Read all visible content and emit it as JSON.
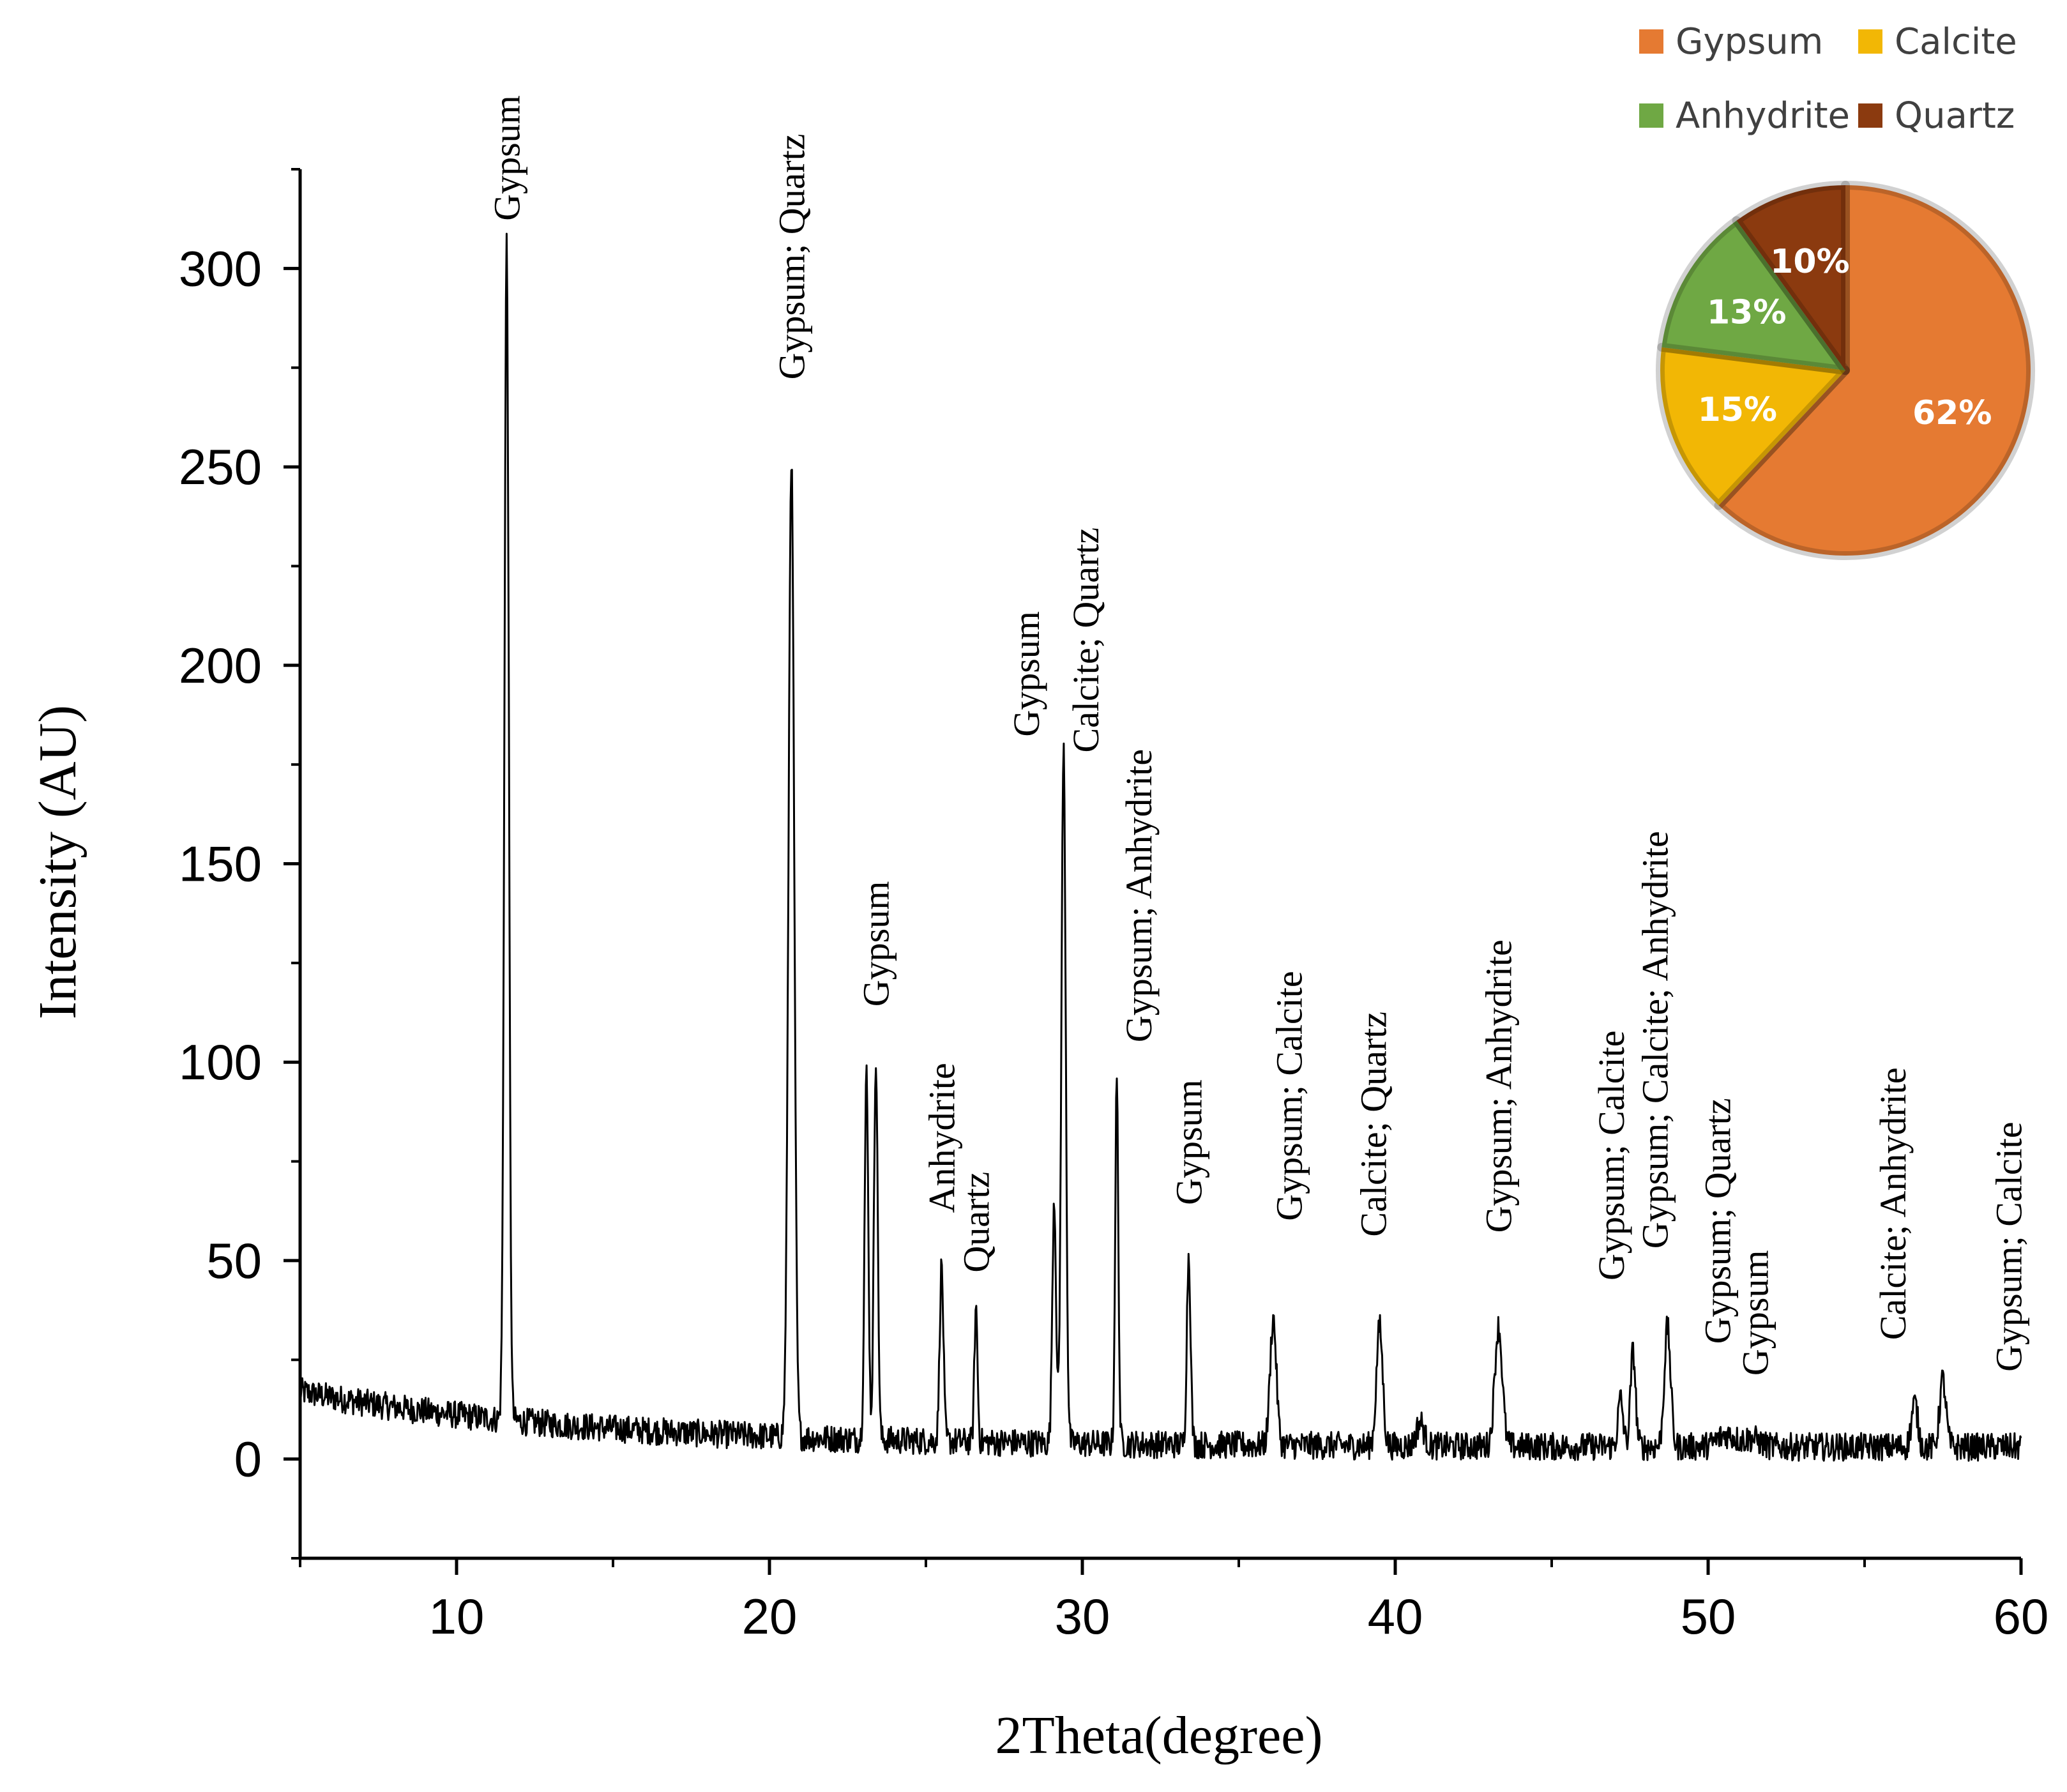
{
  "chart_data": [
    {
      "type": "line",
      "title": "",
      "xlabel": "2Theta(degree)",
      "ylabel": "Intensity (AU)",
      "xlim": [
        5,
        60
      ],
      "ylim": [
        -25,
        325
      ],
      "x_ticks": [
        10,
        20,
        30,
        40,
        50,
        60
      ],
      "y_ticks": [
        0,
        50,
        100,
        150,
        200,
        250,
        300
      ],
      "x_tick_labels": [
        "10",
        "20",
        "30",
        "40",
        "50",
        "60"
      ],
      "y_tick_labels": [
        "0",
        "50",
        "100",
        "150",
        "200",
        "250",
        "300"
      ],
      "grid": false,
      "baseline_start": 14,
      "baseline_end": 3,
      "peaks": [
        {
          "x": 11.6,
          "y": 300,
          "w": 0.07
        },
        {
          "x": 20.7,
          "y": 250,
          "w": 0.09
        },
        {
          "x": 23.1,
          "y": 95,
          "w": 0.06
        },
        {
          "x": 23.4,
          "y": 100,
          "w": 0.06
        },
        {
          "x": 25.5,
          "y": 47,
          "w": 0.06
        },
        {
          "x": 26.6,
          "y": 37,
          "w": 0.05
        },
        {
          "x": 29.1,
          "y": 65,
          "w": 0.06
        },
        {
          "x": 29.4,
          "y": 178,
          "w": 0.07
        },
        {
          "x": 31.1,
          "y": 95,
          "w": 0.05
        },
        {
          "x": 33.4,
          "y": 51,
          "w": 0.06
        },
        {
          "x": 36.1,
          "y": 35,
          "w": 0.1
        },
        {
          "x": 39.5,
          "y": 33,
          "w": 0.1
        },
        {
          "x": 40.8,
          "y": 9,
          "w": 0.12
        },
        {
          "x": 43.3,
          "y": 33,
          "w": 0.12
        },
        {
          "x": 47.2,
          "y": 15,
          "w": 0.08
        },
        {
          "x": 47.6,
          "y": 27,
          "w": 0.08
        },
        {
          "x": 48.7,
          "y": 33,
          "w": 0.1
        },
        {
          "x": 50.6,
          "y": 6,
          "w": 0.3
        },
        {
          "x": 51.4,
          "y": 5,
          "w": 0.25
        },
        {
          "x": 56.6,
          "y": 14,
          "w": 0.1
        },
        {
          "x": 57.5,
          "y": 20,
          "w": 0.1
        }
      ],
      "annotations": [
        {
          "text": "Gypsum",
          "x": 11.6,
          "y": 312
        },
        {
          "text": "Gypsum; Quartz",
          "x": 20.7,
          "y": 272
        },
        {
          "text": "Gypsum",
          "x": 23.4,
          "y": 114
        },
        {
          "text": "Anhydrite",
          "x": 25.5,
          "y": 62
        },
        {
          "text": "Quartz",
          "x": 26.6,
          "y": 47
        },
        {
          "text": "Gypsum",
          "x": 28.2,
          "y": 182
        },
        {
          "text": "Calcite; Quartz",
          "x": 30.1,
          "y": 178
        },
        {
          "text": "Gypsum; Anhydrite",
          "x": 31.8,
          "y": 105
        },
        {
          "text": "Gypsum",
          "x": 33.4,
          "y": 64
        },
        {
          "text": "Gypsum; Calcite",
          "x": 36.6,
          "y": 60
        },
        {
          "text": "Calcite; Quartz",
          "x": 39.3,
          "y": 56
        },
        {
          "text": "Gypsum; Anhydrite",
          "x": 43.3,
          "y": 57
        },
        {
          "text": "Gypsum; Calcite",
          "x": 46.9,
          "y": 45
        },
        {
          "text": "Gypsum; Calcite; Anhydrite",
          "x": 48.3,
          "y": 53
        },
        {
          "text": "Gypsum; Quartz",
          "x": 50.3,
          "y": 29
        },
        {
          "text": "Gypsum",
          "x": 51.5,
          "y": 21
        },
        {
          "text": "Calcite; Anhydrite",
          "x": 55.9,
          "y": 30
        },
        {
          "text": "Gypsum; Calcite",
          "x": 59.6,
          "y": 22
        }
      ]
    },
    {
      "type": "pie",
      "title": "",
      "labels": [
        "Gypsum",
        "Calcite",
        "Anhydrite",
        "Quartz"
      ],
      "values": [
        62,
        15,
        13,
        10
      ],
      "value_labels": [
        "62%",
        "15%",
        "13%",
        "10%"
      ],
      "colors": [
        "#E57A32",
        "#F2B705",
        "#6FA844",
        "#8B3A0F"
      ],
      "legend": "top-right"
    }
  ],
  "colors": {
    "line": "#000000",
    "pie_border": "#C9672B"
  }
}
